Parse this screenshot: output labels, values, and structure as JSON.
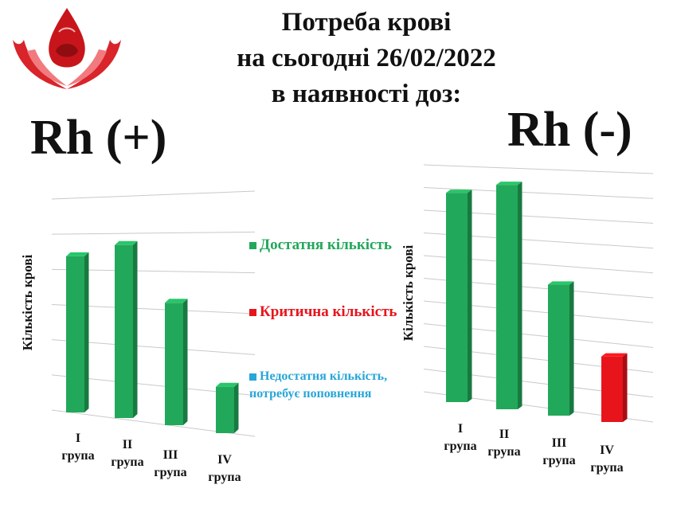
{
  "title_lines": [
    "Потреба крові",
    "на сьогодні 26/02/2022",
    "в наявності доз:"
  ],
  "colors": {
    "sufficient": "#22a85a",
    "critical": "#e8141b",
    "insufficient": "#27a6d8"
  },
  "logo_icon": "blood-drop-in-hands-icon",
  "legend": [
    {
      "label": "Достатня кількість",
      "color": "#22a85a"
    },
    {
      "label": "Критична кількість",
      "color": "#e8141b"
    },
    {
      "label": "Недостатня кількість, потребує поповнення",
      "color": "#27a6d8"
    }
  ],
  "chart_data": [
    {
      "type": "bar",
      "title": "Rh (+)",
      "ylabel": "Кількість крові",
      "categories": [
        "I група",
        "II група",
        "III група",
        "IV група"
      ],
      "values": [
        3.7,
        4.1,
        2.9,
        1.1
      ],
      "status": [
        "sufficient",
        "sufficient",
        "sufficient",
        "sufficient"
      ],
      "ylim": [
        0,
        5
      ]
    },
    {
      "type": "bar",
      "title": "Rh (-)",
      "ylabel": "Кількість крові",
      "categories": [
        "I група",
        "II група",
        "III група",
        "IV група"
      ],
      "values": [
        8.3,
        8.9,
        5.2,
        2.6
      ],
      "status": [
        "sufficient",
        "sufficient",
        "sufficient",
        "critical"
      ],
      "ylim": [
        0,
        9
      ]
    }
  ]
}
